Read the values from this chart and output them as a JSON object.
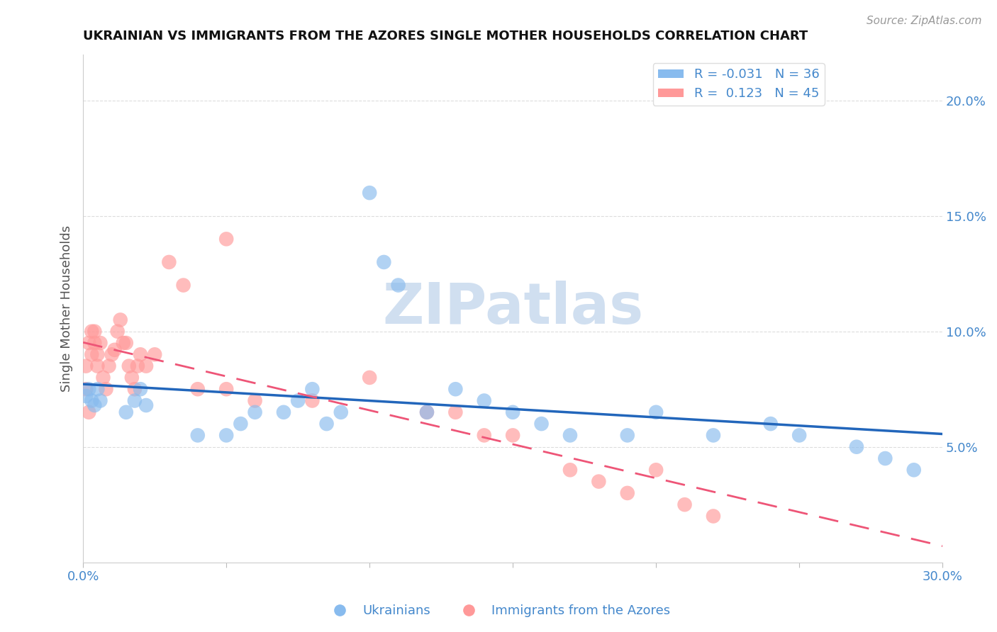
{
  "title": "UKRAINIAN VS IMMIGRANTS FROM THE AZORES SINGLE MOTHER HOUSEHOLDS CORRELATION CHART",
  "source": "Source: ZipAtlas.com",
  "ylabel": "Single Mother Households",
  "xlim": [
    0.0,
    0.3
  ],
  "ylim": [
    0.0,
    0.22
  ],
  "yticks": [
    0.0,
    0.05,
    0.1,
    0.15,
    0.2
  ],
  "ytick_labels": [
    "",
    "5.0%",
    "10.0%",
    "15.0%",
    "20.0%"
  ],
  "xticks": [
    0.0,
    0.05,
    0.1,
    0.15,
    0.2,
    0.25,
    0.3
  ],
  "xtick_labels": [
    "0.0%",
    "",
    "",
    "",
    "",
    "",
    "30.0%"
  ],
  "legend_r_blue": "-0.031",
  "legend_n_blue": "36",
  "legend_r_pink": "0.123",
  "legend_n_pink": "45",
  "blue_scatter_x": [
    0.001,
    0.002,
    0.003,
    0.004,
    0.005,
    0.006,
    0.015,
    0.018,
    0.02,
    0.022,
    0.04,
    0.05,
    0.055,
    0.06,
    0.07,
    0.075,
    0.08,
    0.085,
    0.09,
    0.1,
    0.105,
    0.11,
    0.12,
    0.13,
    0.14,
    0.15,
    0.16,
    0.17,
    0.19,
    0.2,
    0.22,
    0.24,
    0.25,
    0.27,
    0.28,
    0.29
  ],
  "blue_scatter_y": [
    0.072,
    0.075,
    0.07,
    0.068,
    0.075,
    0.07,
    0.065,
    0.07,
    0.075,
    0.068,
    0.055,
    0.055,
    0.06,
    0.065,
    0.065,
    0.07,
    0.075,
    0.06,
    0.065,
    0.16,
    0.13,
    0.12,
    0.065,
    0.075,
    0.07,
    0.065,
    0.06,
    0.055,
    0.055,
    0.065,
    0.055,
    0.06,
    0.055,
    0.05,
    0.045,
    0.04
  ],
  "pink_scatter_x": [
    0.001,
    0.001,
    0.002,
    0.002,
    0.003,
    0.003,
    0.004,
    0.004,
    0.005,
    0.005,
    0.006,
    0.007,
    0.008,
    0.009,
    0.01,
    0.011,
    0.012,
    0.013,
    0.014,
    0.015,
    0.016,
    0.017,
    0.018,
    0.019,
    0.02,
    0.022,
    0.025,
    0.03,
    0.035,
    0.04,
    0.05,
    0.06,
    0.08,
    0.1,
    0.12,
    0.13,
    0.14,
    0.15,
    0.17,
    0.18,
    0.19,
    0.2,
    0.21,
    0.22,
    0.05
  ],
  "pink_scatter_y": [
    0.075,
    0.085,
    0.065,
    0.095,
    0.09,
    0.1,
    0.095,
    0.1,
    0.085,
    0.09,
    0.095,
    0.08,
    0.075,
    0.085,
    0.09,
    0.092,
    0.1,
    0.105,
    0.095,
    0.095,
    0.085,
    0.08,
    0.075,
    0.085,
    0.09,
    0.085,
    0.09,
    0.13,
    0.12,
    0.075,
    0.075,
    0.07,
    0.07,
    0.08,
    0.065,
    0.065,
    0.055,
    0.055,
    0.04,
    0.035,
    0.03,
    0.04,
    0.025,
    0.02,
    0.14
  ],
  "blue_color": "#88BBEE",
  "pink_color": "#FF9999",
  "blue_line_color": "#2266BB",
  "pink_line_color": "#EE5577",
  "background_color": "#FFFFFF",
  "title_color": "#111111",
  "axis_color": "#4488CC",
  "watermark": "ZIPatlas",
  "watermark_color": "#D0DFF0",
  "grid_color": "#DDDDDD"
}
